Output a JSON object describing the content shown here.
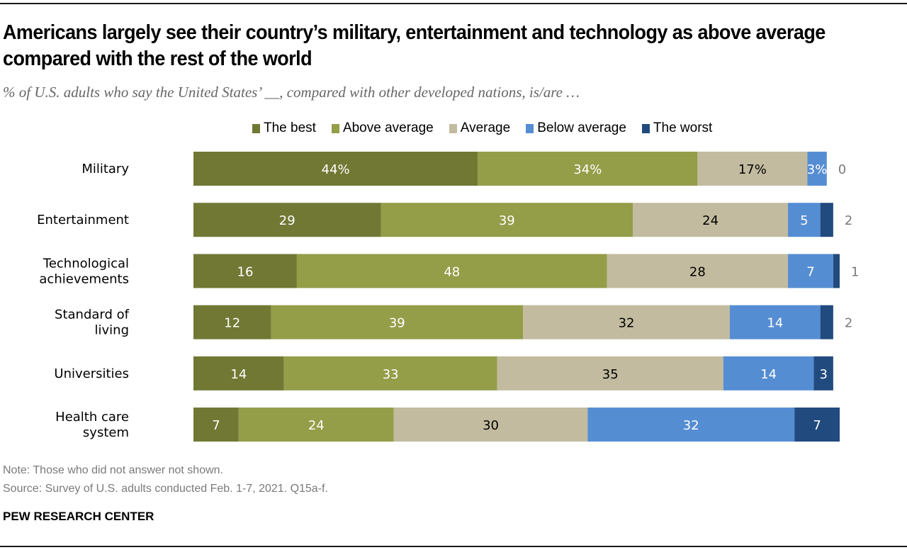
{
  "header": {
    "title": "Americans largely see their country’s military, entertainment and technology as above average compared with the rest of the world",
    "subtitle": "% of U.S. adults who say the United States’ __, compared with other developed nations, is/are …"
  },
  "legend": [
    {
      "label": "The best",
      "color": "#717834"
    },
    {
      "label": "Above average",
      "color": "#949d48"
    },
    {
      "label": "Average",
      "color": "#c2bb9f"
    },
    {
      "label": "Below average",
      "color": "#558dd3"
    },
    {
      "label": "The worst",
      "color": "#214a7e"
    }
  ],
  "chart_data": {
    "type": "bar",
    "orientation": "horizontal-stacked",
    "title": "Americans largely see their country’s military, entertainment and technology as above average compared with the rest of the world",
    "subtitle": "% of U.S. adults who say the United States’ __, compared with other developed nations, is/are …",
    "xlabel": "",
    "ylabel": "",
    "xlim": [
      0,
      100
    ],
    "grid": false,
    "legend_position": "top",
    "categories": [
      "Military",
      "Entertainment",
      "Technological achievements",
      "Standard of living",
      "Universities",
      "Health care system"
    ],
    "category_lines": [
      [
        "Military"
      ],
      [
        "Entertainment"
      ],
      [
        "Technological",
        "achievements"
      ],
      [
        "Standard of",
        "living"
      ],
      [
        "Universities"
      ],
      [
        "Health care",
        "system"
      ]
    ],
    "series": [
      {
        "name": "The best",
        "color": "#717834",
        "text_color": "#ffffff",
        "values": [
          44,
          29,
          16,
          12,
          14,
          7
        ]
      },
      {
        "name": "Above average",
        "color": "#949d48",
        "text_color": "#ffffff",
        "values": [
          34,
          39,
          48,
          39,
          33,
          24
        ]
      },
      {
        "name": "Average",
        "color": "#c2bb9f",
        "text_color": "#000000",
        "values": [
          17,
          24,
          28,
          32,
          35,
          30
        ]
      },
      {
        "name": "Below average",
        "color": "#558dd3",
        "text_color": "#ffffff",
        "values": [
          3,
          5,
          7,
          14,
          14,
          32
        ]
      },
      {
        "name": "The worst",
        "color": "#214a7e",
        "text_color": "#ffffff",
        "values": [
          0,
          2,
          1,
          2,
          3,
          7
        ]
      }
    ],
    "data_labels": [
      [
        "44%",
        "34%",
        "17%",
        "3%",
        "0"
      ],
      [
        "29",
        "39",
        "24",
        "5",
        "2"
      ],
      [
        "16",
        "48",
        "28",
        "7",
        "1"
      ],
      [
        "12",
        "39",
        "32",
        "14",
        "2"
      ],
      [
        "14",
        "33",
        "35",
        "14",
        "3"
      ],
      [
        "7",
        "24",
        "30",
        "32",
        "7"
      ]
    ],
    "outside_label_series": "The worst",
    "outside_label_rows": [
      0,
      1,
      2,
      3
    ]
  },
  "footer": {
    "note": "Note: Those who did not answer not shown.",
    "source": "Source: Survey of U.S. adults conducted Feb. 1-7, 2021. Q15a-f.",
    "brand": "PEW RESEARCH CENTER"
  }
}
